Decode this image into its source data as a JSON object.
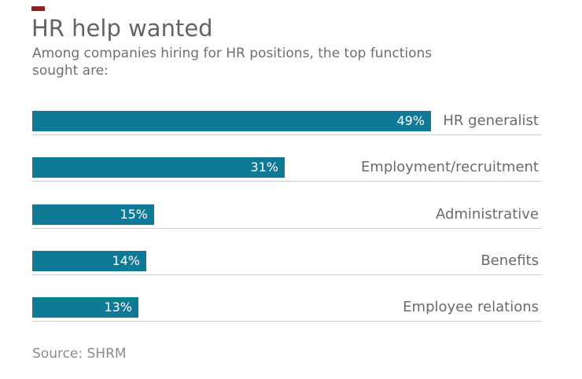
{
  "header": {
    "title": "HR help wanted",
    "subtitle": "Among companies hiring for HR positions, the top functions sought are:",
    "subtitle_lines": [
      "Among companies hiring for HR positions, the top functions",
      "sought are:"
    ]
  },
  "chart_data": {
    "type": "bar",
    "orientation": "horizontal",
    "title": "HR help wanted",
    "subtitle": "Among companies hiring for HR positions, the top functions sought are:",
    "categories": [
      "HR generalist",
      "Employment/recruitment",
      "Administrative",
      "Benefits",
      "Employee relations"
    ],
    "values": [
      49,
      31,
      15,
      14,
      13
    ],
    "value_labels": [
      "49%",
      "31%",
      "15%",
      "14%",
      "13%"
    ],
    "unit": "%",
    "xlim": [
      0,
      63
    ],
    "grid": false,
    "legend": "none",
    "category_label_position": "right-aligned-right-of-bar",
    "value_label_position": "inside-bar-right"
  },
  "footer": {
    "source": "Source: SHRM"
  },
  "colors": {
    "bar": "#0f7a96",
    "value_label": "#ffffff",
    "title_text": "#636363",
    "body_text": "#6e6e6e",
    "category_text": "#6a6a6a",
    "source_text": "#8b8b8b",
    "baseline": "#cccccc",
    "marker_red": "#8b2222"
  }
}
